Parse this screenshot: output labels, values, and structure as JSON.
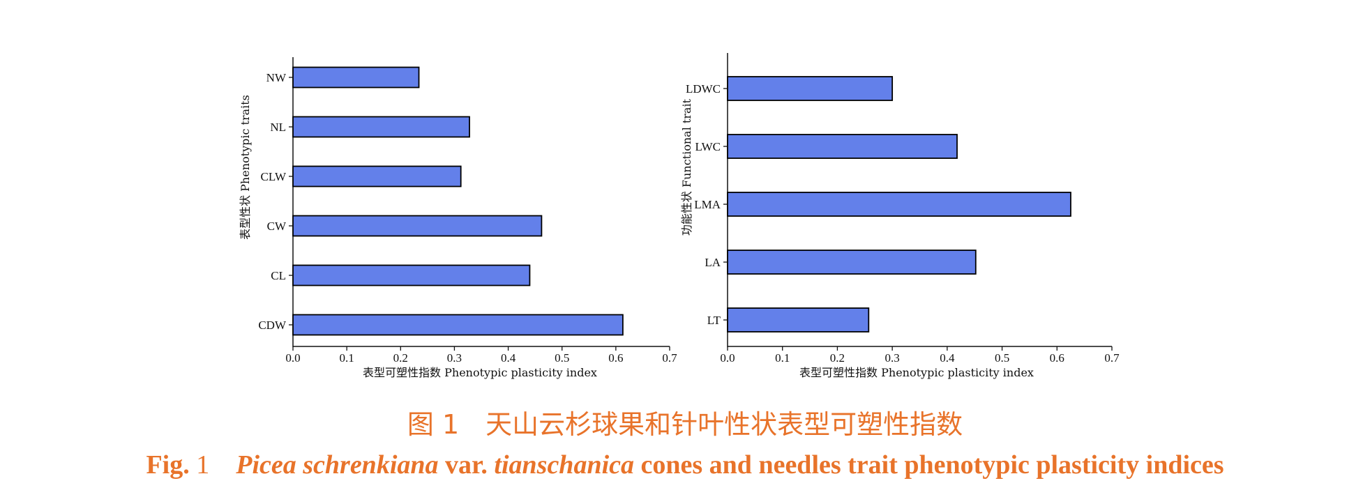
{
  "chart_data": [
    {
      "type": "bar",
      "orientation": "horizontal",
      "categories": [
        "CDW",
        "CL",
        "CW",
        "CLW",
        "NL",
        "NW"
      ],
      "values": [
        0.613,
        0.44,
        0.462,
        0.312,
        0.328,
        0.234
      ],
      "xlabel": "表型可塑性指数 Phenotypic plasticity index",
      "ylabel": "表型性状 Phenotypic traits",
      "xlim": [
        0,
        0.7
      ],
      "xticks": [
        "0.0",
        "0.1",
        "0.2",
        "0.3",
        "0.4",
        "0.5",
        "0.6",
        "0.7"
      ],
      "bar_color": "#6380EA",
      "grid": false
    },
    {
      "type": "bar",
      "orientation": "horizontal",
      "categories": [
        "LT",
        "LA",
        "LMA",
        "LWC",
        "LDWC"
      ],
      "values": [
        0.257,
        0.452,
        0.625,
        0.418,
        0.3
      ],
      "xlabel": "表型可塑性指数 Phenotypic plasticity index",
      "ylabel": "功能性状 Functional trait",
      "xlim": [
        0,
        0.7
      ],
      "xticks": [
        "0.0",
        "0.1",
        "0.2",
        "0.3",
        "0.4",
        "0.5",
        "0.6",
        "0.7"
      ],
      "bar_color": "#6380EA",
      "grid": false
    }
  ],
  "caption": {
    "cn": "图 1　天山云杉球果和针叶性状表型可塑性指数",
    "en_label": "Fig",
    "en_num": "1",
    "en_species": "Picea schrenkiana",
    "en_var": "var.",
    "en_subspecies": "tianschanica",
    "en_rest": "cones and needles trait phenotypic plasticity indices"
  }
}
